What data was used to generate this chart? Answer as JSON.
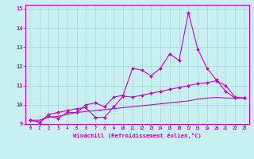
{
  "xlabel": "Windchill (Refroidissement éolien,°C)",
  "background_color": "#c8f0f0",
  "line_color": "#cc00cc",
  "grid_color": "#a8dada",
  "xlim": [
    -0.5,
    23.5
  ],
  "ylim": [
    9.0,
    15.2
  ],
  "xticks": [
    0,
    1,
    2,
    3,
    4,
    5,
    6,
    7,
    8,
    9,
    10,
    11,
    12,
    13,
    14,
    15,
    16,
    17,
    18,
    19,
    20,
    21,
    22,
    23
  ],
  "yticks": [
    9,
    10,
    11,
    12,
    13,
    14,
    15
  ],
  "x": [
    0,
    1,
    2,
    3,
    4,
    5,
    6,
    7,
    8,
    9,
    10,
    11,
    12,
    13,
    14,
    15,
    16,
    17,
    18,
    19,
    20,
    21,
    22,
    23
  ],
  "line1": [
    9.2,
    9.1,
    9.4,
    9.3,
    9.6,
    9.6,
    10.0,
    10.1,
    9.9,
    10.4,
    10.5,
    11.9,
    11.8,
    11.5,
    11.9,
    12.65,
    12.3,
    14.8,
    12.9,
    11.9,
    11.3,
    10.7,
    10.35,
    10.35
  ],
  "line2": [
    9.2,
    9.1,
    9.5,
    9.6,
    9.7,
    9.8,
    9.85,
    9.35,
    9.35,
    9.9,
    10.45,
    10.4,
    10.5,
    10.6,
    10.7,
    10.8,
    10.9,
    11.0,
    11.1,
    11.15,
    11.25,
    11.0,
    10.4,
    10.35
  ],
  "line3": [
    9.2,
    9.2,
    9.35,
    9.4,
    9.5,
    9.6,
    9.65,
    9.7,
    9.75,
    9.8,
    9.85,
    9.9,
    9.95,
    10.0,
    10.05,
    10.1,
    10.15,
    10.2,
    10.3,
    10.35,
    10.38,
    10.35,
    10.35,
    10.35
  ]
}
